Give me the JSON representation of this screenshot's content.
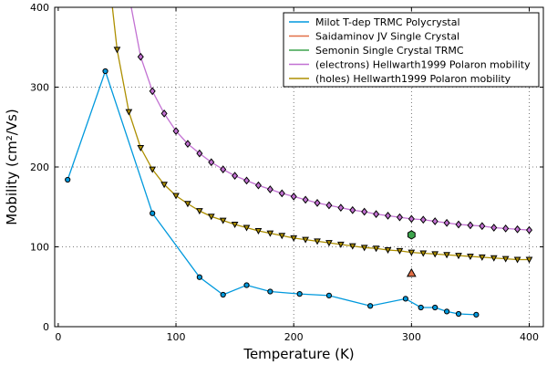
{
  "chart_data": {
    "type": "line",
    "xlabel": "Temperature (K)",
    "ylabel": "Mobility (cm²/Vs)",
    "xlim": [
      -3,
      412
    ],
    "ylim": [
      0,
      400
    ],
    "xticks": [
      0,
      100,
      200,
      300,
      400
    ],
    "yticks": [
      0,
      100,
      200,
      300,
      400
    ],
    "grid": true,
    "grid_style": "dotted",
    "legend_position": "top-right",
    "series": [
      {
        "name": "Milot T-dep TRMC Polycrystal",
        "color": "#0099dd",
        "marker": "circle",
        "line": true,
        "x": [
          8,
          40,
          80,
          120,
          140,
          160,
          180,
          205,
          230,
          265,
          295,
          308,
          320,
          330,
          340,
          355
        ],
        "y": [
          184,
          320,
          142,
          62,
          40,
          52,
          44,
          41,
          39,
          26,
          35,
          24,
          24,
          19,
          16,
          15
        ]
      },
      {
        "name": "Saidaminov JV Single Crystal",
        "color": "#e26f46",
        "marker": "triangle",
        "line": false,
        "x": [
          300
        ],
        "y": [
          67
        ]
      },
      {
        "name": "Semonin Single Crystal TRMC",
        "color": "#3da44d",
        "marker": "hexagon",
        "line": false,
        "x": [
          300
        ],
        "y": [
          115
        ]
      },
      {
        "name": "(electrons) Hellwarth1999 Polaron mobility",
        "color": "#c271d2",
        "marker": "diamond",
        "line": true,
        "x": [
          70,
          80,
          90,
          100,
          110,
          120,
          130,
          140,
          150,
          160,
          170,
          180,
          190,
          200,
          210,
          220,
          230,
          240,
          250,
          260,
          270,
          280,
          290,
          300,
          310,
          320,
          330,
          340,
          350,
          360,
          370,
          380,
          390,
          400
        ],
        "y": [
          338,
          295,
          267,
          245,
          229,
          217,
          206,
          197,
          189,
          183,
          177,
          172,
          167,
          163,
          159,
          155,
          152,
          149,
          146,
          144,
          141,
          139,
          137,
          135,
          134,
          132,
          130,
          128,
          127,
          126,
          124,
          123,
          122,
          121
        ]
      },
      {
        "name": "(holes) Hellwarth1999 Polaron mobility",
        "color": "#ad8f00",
        "marker": "triangle-down",
        "line": true,
        "x": [
          50,
          60,
          70,
          80,
          90,
          100,
          110,
          120,
          130,
          140,
          150,
          160,
          170,
          180,
          190,
          200,
          210,
          220,
          230,
          240,
          250,
          260,
          270,
          280,
          290,
          300,
          310,
          320,
          330,
          340,
          350,
          360,
          370,
          380,
          390,
          400
        ],
        "y": [
          347,
          269,
          224,
          197,
          178,
          164,
          154,
          145,
          138,
          133,
          128,
          124,
          120,
          117,
          114,
          111,
          109,
          107,
          105,
          103,
          101,
          99,
          98,
          96,
          95,
          93,
          92,
          91,
          90,
          89,
          88,
          87,
          86,
          85,
          84,
          84
        ]
      }
    ],
    "line_extensions": {
      "electrons_start": [
        62,
        400
      ],
      "holes_start": [
        46,
        400
      ]
    }
  }
}
